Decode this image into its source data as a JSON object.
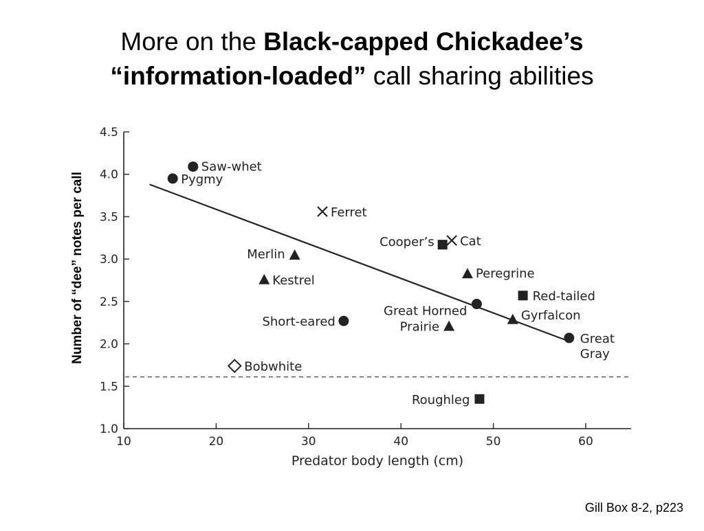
{
  "title": {
    "line1_plain": "More on the ",
    "line1_bold": "Black-capped Chickadee’s",
    "line2_bold": "“information-loaded”",
    "line2_plain": " call sharing abilities"
  },
  "citation": "Gill Box 8-2, p223",
  "chart_data": {
    "type": "scatter",
    "xlabel": "Predator body length (cm)",
    "ylabel": "Number of “dee” notes per call",
    "xlim": [
      10,
      65
    ],
    "ylim": [
      1.0,
      4.5
    ],
    "xticks": [
      "10",
      "20",
      "30",
      "40",
      "50",
      "60"
    ],
    "yticks": [
      "1.0",
      "1.5",
      "2.0",
      "2.5",
      "3.0",
      "3.5",
      "4.0",
      "4.5"
    ],
    "grid": false,
    "points": [
      {
        "label": "Saw-whet",
        "x": 17.5,
        "y": 4.09,
        "marker": "circle"
      },
      {
        "label": "Pygmy",
        "x": 15.3,
        "y": 3.95,
        "marker": "circle"
      },
      {
        "label": "Ferret",
        "x": 31.5,
        "y": 3.56,
        "marker": "x"
      },
      {
        "label": "Cooper’s",
        "x": 44.5,
        "y": 3.17,
        "marker": "square"
      },
      {
        "label": "Cat",
        "x": 45.5,
        "y": 3.22,
        "marker": "x"
      },
      {
        "label": "Merlin",
        "x": 28.5,
        "y": 3.05,
        "marker": "triangle"
      },
      {
        "label": "Kestrel",
        "x": 25.2,
        "y": 2.76,
        "marker": "triangle"
      },
      {
        "label": "Peregrine",
        "x": 47.2,
        "y": 2.83,
        "marker": "triangle"
      },
      {
        "label": "Red-tailed",
        "x": 53.2,
        "y": 2.57,
        "marker": "square"
      },
      {
        "label": "Great Horned",
        "x": 48.2,
        "y": 2.47,
        "marker": "circle"
      },
      {
        "label": "Short-eared",
        "x": 33.8,
        "y": 2.27,
        "marker": "circle"
      },
      {
        "label": "Prairie",
        "x": 45.2,
        "y": 2.21,
        "marker": "triangle"
      },
      {
        "label": "Gyrfalcon",
        "x": 52.1,
        "y": 2.29,
        "marker": "triangle"
      },
      {
        "label": "Great Gray",
        "x": 58.2,
        "y": 2.07,
        "marker": "circle"
      },
      {
        "label": "Bobwhite",
        "x": 22.0,
        "y": 1.74,
        "marker": "diamond"
      },
      {
        "label": "Roughleg",
        "x": 48.5,
        "y": 1.35,
        "marker": "square"
      }
    ],
    "trendline": {
      "x": [
        12.8,
        58.2
      ],
      "y": [
        3.88,
        2.03
      ]
    },
    "reference_line": {
      "y": 1.61,
      "style": "dashed"
    }
  }
}
